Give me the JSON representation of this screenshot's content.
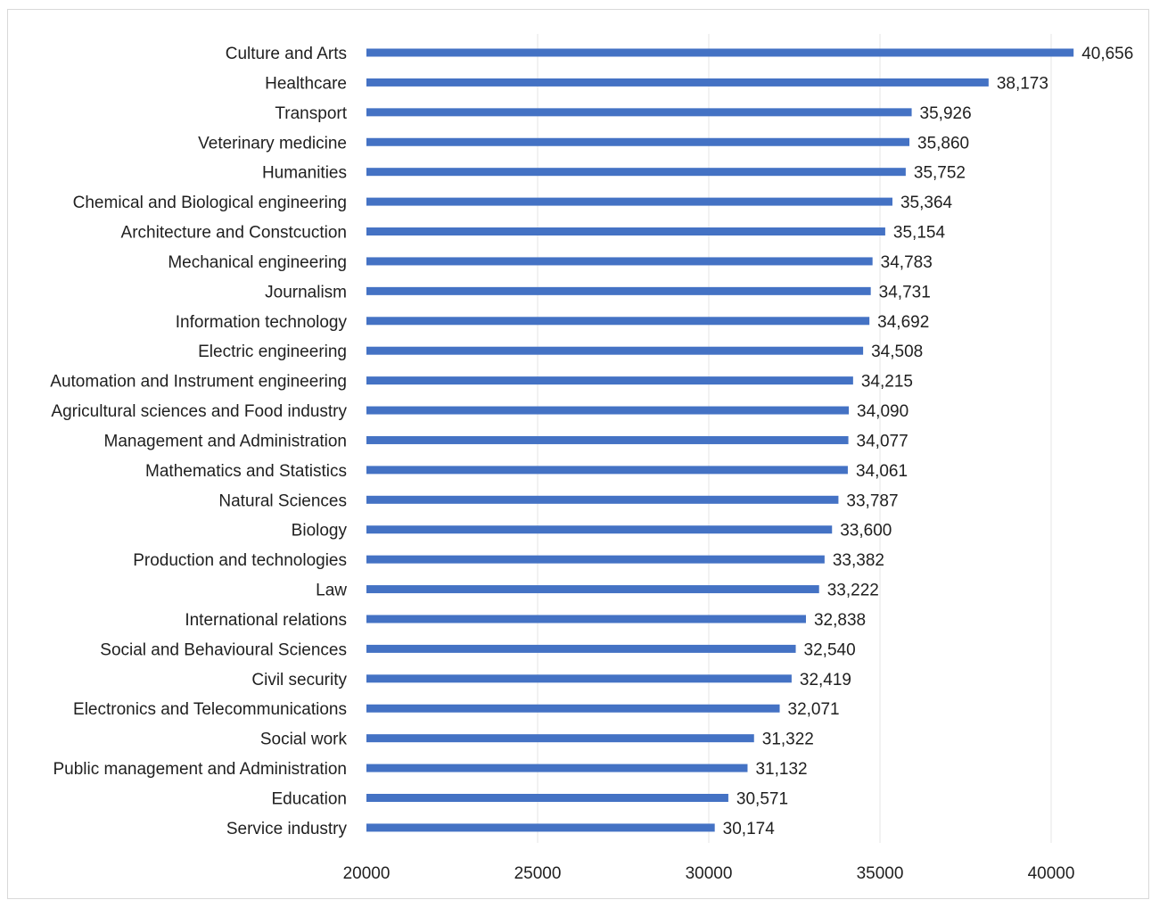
{
  "chart_data": {
    "type": "bar",
    "orientation": "horizontal",
    "categories": [
      "Culture and Arts",
      "Healthcare",
      "Transport",
      "Veterinary medicine",
      "Humanities",
      "Chemical and Biological engineering",
      "Architecture and Constcuction",
      "Mechanical engineering",
      "Journalism",
      "Information technology",
      "Electric engineering",
      "Automation and Instrument engineering",
      "Agricultural sciences and Food industry",
      "Management and Administration",
      "Mathematics and Statistics",
      "Natural Sciences",
      "Biology",
      "Production and technologies",
      "Law",
      "International relations",
      "Social and Behavioural Sciences",
      "Civil security",
      "Electronics and Telecommunications",
      "Social work",
      "Public management and Administration",
      "Education",
      "Service industry"
    ],
    "values": [
      40656,
      38173,
      35926,
      35860,
      35752,
      35364,
      35154,
      34783,
      34731,
      34692,
      34508,
      34215,
      34090,
      34077,
      34061,
      33787,
      33600,
      33382,
      33222,
      32838,
      32540,
      32419,
      32071,
      31322,
      31132,
      30571,
      30174
    ],
    "value_labels": [
      "40,656",
      "38,173",
      "35,926",
      "35,860",
      "35,752",
      "35,364",
      "35,154",
      "34,783",
      "34,731",
      "34,692",
      "34,508",
      "34,215",
      "34,090",
      "34,077",
      "34,061",
      "33,787",
      "33,600",
      "33,382",
      "33,222",
      "32,838",
      "32,540",
      "32,419",
      "32,071",
      "31,322",
      "31,132",
      "30,571",
      "30,174"
    ],
    "xlim": [
      20000,
      40000
    ],
    "x_ticks": [
      20000,
      25000,
      30000,
      35000,
      40000
    ],
    "x_tick_labels": [
      "20000",
      "25000",
      "30000",
      "35000",
      "40000"
    ],
    "title": "",
    "xlabel": "",
    "ylabel": "",
    "grid": "vertical",
    "legend": "none",
    "bar_color": "#4472c4",
    "grid_color": "#e6e6e6"
  }
}
